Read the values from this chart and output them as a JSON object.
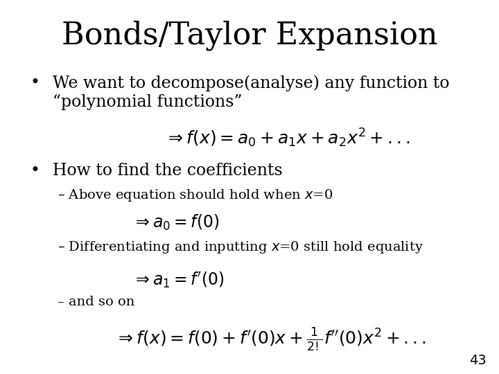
{
  "title": "Bonds/Taylor Expansion",
  "title_fontsize": 32,
  "title_font": "serif",
  "background_color": "#ffffff",
  "text_color": "#000000",
  "bullet1_line1": "We want to decompose(analyse) any function to",
  "bullet1_line2": "“polynomial functions”",
  "bullet1_fontsize": 17,
  "formula1": "$\\Rightarrow f(x)= a_0 + a_1 x + a_2 x^2 + ...$",
  "formula1_fontsize": 18,
  "bullet2": "How to find the coefficients",
  "bullet2_fontsize": 17,
  "sub1": "Above equation should hold when $x$=0",
  "sub1_fontsize": 14,
  "formula2": "$\\Rightarrow a_0 = f(0)$",
  "formula2_fontsize": 17,
  "sub2": "Differentiating and inputting $x$=0 still hold equality",
  "sub2_fontsize": 14,
  "formula3": "$\\Rightarrow a_1 = f'(0)$",
  "formula3_fontsize": 17,
  "sub3": "and so on",
  "sub3_fontsize": 14,
  "formula4": "$\\Rightarrow f(x)= f(0)+ f'(0)x + \\frac{1}{2!} f''(0)x^2 + ...$",
  "formula4_fontsize": 18,
  "page_number": "43",
  "page_fontsize": 14
}
